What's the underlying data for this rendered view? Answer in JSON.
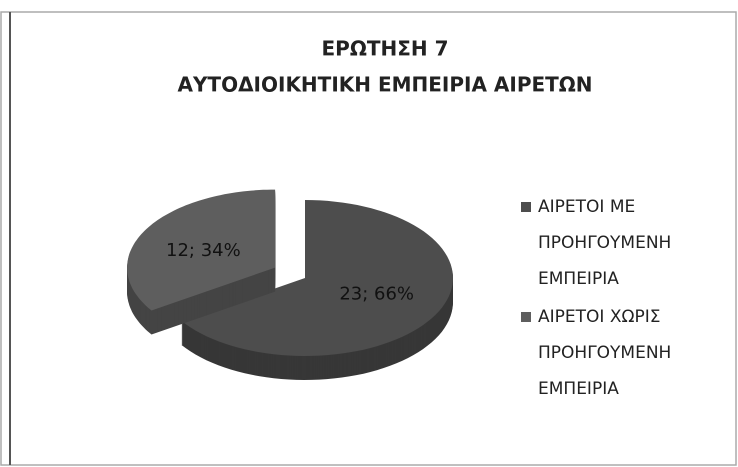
{
  "chart_data": {
    "type": "pie3d",
    "title": "ΕΡΩΤΗΣΗ 7",
    "subtitle": "ΑΥΤΟΔΙΟΙΚΗΤΙΚΗ ΕΜΠΕΙΡΙΑ ΑΙΡΕΤΩΝ",
    "categories": [
      "ΑΙΡΕΤΟΙ ΜΕ ΠΡΟΗΓΟΥΜΕΝΗ ΕΜΠΕΙΡΙΑ",
      "ΑΙΡΕΤΟΙ ΧΩΡΙΣ ΠΡΟΗΓΟΥΜΕΝΗ ΕΜΠΕΙΡΙΑ"
    ],
    "values": [
      23,
      12
    ],
    "value_labels": [
      "23; 66%",
      "12; 34%"
    ],
    "colors": [
      "#4d4d4d",
      "#5e5e5e"
    ],
    "legend": "right"
  }
}
